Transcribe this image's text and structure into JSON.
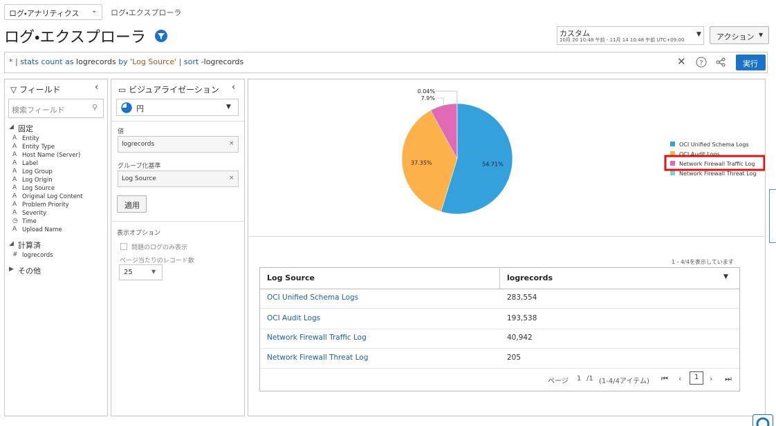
{
  "header": {
    "app_selector": "ログ・アナリティクス",
    "breadcrumb": "ログ・エクスプローラ",
    "title": "ログ・エクスプローラ",
    "time_range_label": "カスタム",
    "time_range": "10月 20 10:48 午前 - 11月 14 10:48 午前 UTC+09:00",
    "actions": "アクション"
  },
  "query": {
    "tokens": [
      "*",
      " | ",
      "stats",
      " count ",
      "as",
      " logrecords ",
      "by",
      " 'Log Source' ",
      "| ",
      "sort",
      " -logrecords"
    ],
    "run": "実行"
  },
  "fields_panel": {
    "title": "フィールド",
    "search_placeholder": "検索フィールド",
    "groups": [
      {
        "label": "固定",
        "items": [
          "Entity",
          "Entity Type",
          "Host Name (Server)",
          "Label",
          "Log Group",
          "Log Origin",
          "Log Source",
          "Original Log Content",
          "Problem Priority",
          "Severity",
          "Time",
          "Upload Name"
        ]
      },
      {
        "label": "計算済",
        "items": [
          "logrecords"
        ]
      },
      {
        "label": "その他"
      }
    ]
  },
  "viz_panel": {
    "title": "ビジュアライゼーション",
    "chart_type": "円",
    "value_label": "値",
    "value": "logrecords",
    "group_label": "グループ化基準",
    "group": "Log Source",
    "apply": "適用",
    "options_label": "表示オプション",
    "problem_only": "問題のログのみ表示",
    "records_label": "ページ当たりのレコード数",
    "records": "25"
  },
  "chart_data": {
    "type": "pie",
    "categories": [
      "OCI Unified Schema Logs",
      "OCI Audit Logs",
      "Network Firewall Traffic Log",
      "Network Firewall Threat Log"
    ],
    "values": [
      54.71,
      37.35,
      7.9,
      0.04
    ],
    "value_labels": [
      "54.71%",
      "37.35%",
      "7.9%",
      "0.04%"
    ],
    "colors": [
      "#35a1dc",
      "#fdb14b",
      "#e06bb4",
      "#7dd3d3"
    ]
  },
  "table": {
    "count_text": "1 - 4/4を表示しています",
    "columns": [
      "Log Source",
      "logrecords"
    ],
    "rows": [
      [
        "OCI Unified Schema Logs",
        "283,554"
      ],
      [
        "OCI Audit Logs",
        "193,538"
      ],
      [
        "Network Firewall Traffic Log",
        "40,942"
      ],
      [
        "Network Firewall  Threat Log",
        "205"
      ]
    ],
    "pager": {
      "label": "ページ",
      "page": "1",
      "of": "/1",
      "items": "(1-4/4アイテム)",
      "current": "1"
    }
  }
}
